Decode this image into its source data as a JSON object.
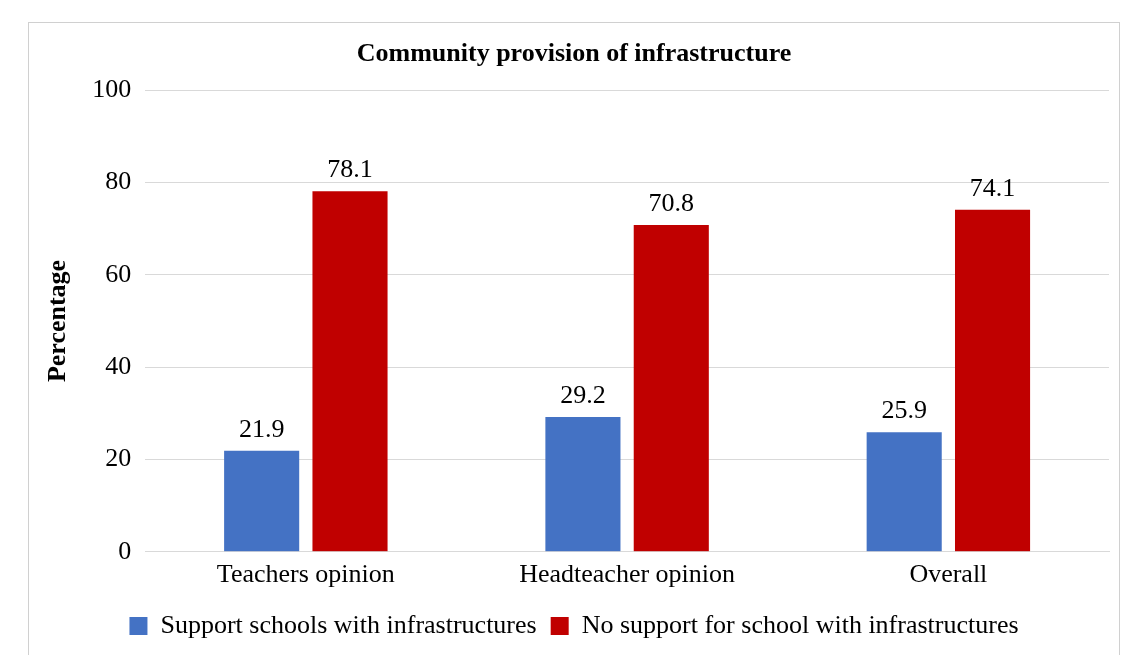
{
  "chart_data": {
    "type": "bar",
    "title": "Community provision of infrastructure",
    "ylabel": "Percentage",
    "categories": [
      "Teachers opinion",
      "Headteacher opinion",
      "Overall"
    ],
    "series": [
      {
        "name": "Support schools with infrastructures",
        "color": "#4472c4",
        "values": [
          21.9,
          29.2,
          25.9
        ]
      },
      {
        "name": "No support for school with infrastructures",
        "color": "#c00000",
        "values": [
          78.1,
          70.8,
          74.1
        ]
      }
    ],
    "ylim": [
      0,
      100
    ],
    "yticks": [
      0,
      20,
      40,
      60,
      80,
      100
    ],
    "grid": "y",
    "legend": "bottom",
    "data_labels": true
  }
}
